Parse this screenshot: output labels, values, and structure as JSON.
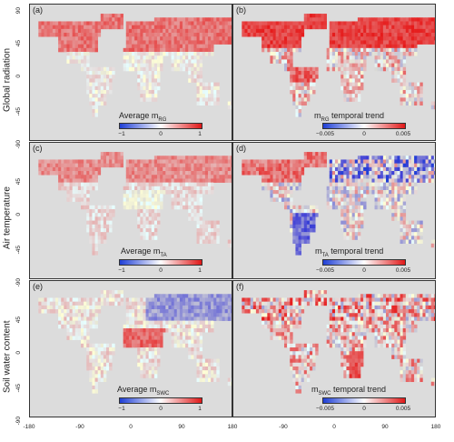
{
  "rows": [
    {
      "label": "Global radiation"
    },
    {
      "label": "Air temperature"
    },
    {
      "label": "Soil water content"
    }
  ],
  "panels": [
    {
      "id": "(a)",
      "title_main": "Average m",
      "title_sub": "RG",
      "title_suffix": "",
      "cb_ticks": [
        "−1",
        "0",
        "1"
      ]
    },
    {
      "id": "(b)",
      "title_main": "m",
      "title_sub": "RG",
      "title_suffix": " temporal trend",
      "cb_ticks": [
        "−0.005",
        "0",
        "0.005"
      ]
    },
    {
      "id": "(c)",
      "title_main": "Average m",
      "title_sub": "TA",
      "title_suffix": "",
      "cb_ticks": [
        "−1",
        "0",
        "1"
      ]
    },
    {
      "id": "(d)",
      "title_main": "m",
      "title_sub": "TA",
      "title_suffix": " temporal trend",
      "cb_ticks": [
        "−0.005",
        "0",
        "0.005"
      ]
    },
    {
      "id": "(e)",
      "title_main": "Average m",
      "title_sub": "SWC",
      "title_suffix": "",
      "cb_ticks": [
        "−1",
        "0",
        "1"
      ]
    },
    {
      "id": "(f)",
      "title_main": "m",
      "title_sub": "SWC",
      "title_suffix": " temporal trend",
      "cb_ticks": [
        "−0.005",
        "0",
        "0.005"
      ]
    }
  ],
  "axes": {
    "x_ticks_left": [
      "-180",
      "-90",
      "0",
      "90",
      "180"
    ],
    "x_ticks_right": [
      "-90",
      "0",
      "90",
      "180"
    ],
    "y_ticks": [
      "90",
      "45",
      "0",
      "-45",
      "-90"
    ]
  },
  "colors": {
    "negative": "#1f3fd6",
    "positive": "#e01818",
    "neutral": "#ffffff",
    "ocean": "#dcdcdc"
  }
}
